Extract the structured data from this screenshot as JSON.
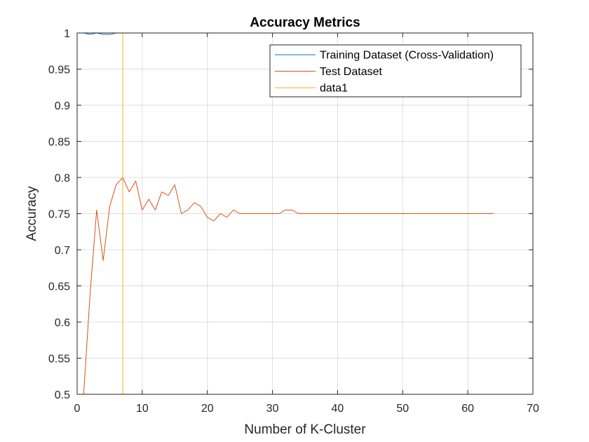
{
  "chart_data": {
    "type": "line",
    "title": "Accuracy Metrics",
    "xlabel": "Number of K-Cluster",
    "ylabel": "Accuracy",
    "xlim": [
      0,
      70
    ],
    "ylim": [
      0.5,
      1
    ],
    "xticks": [
      0,
      10,
      20,
      30,
      40,
      50,
      60,
      70
    ],
    "yticks": [
      0.5,
      0.55,
      0.6,
      0.65,
      0.7,
      0.75,
      0.8,
      0.85,
      0.9,
      0.95,
      1
    ],
    "ytick_labels": [
      "0.5",
      "0.55",
      "0.6",
      "0.65",
      "0.7",
      "0.75",
      "0.8",
      "0.85",
      "0.9",
      "0.95",
      "1"
    ],
    "grid": true,
    "legend_position": "top-right",
    "series": [
      {
        "name": "Training Dataset (Cross-Validation)",
        "color": "#0072BD",
        "x": [
          1,
          2,
          3,
          4,
          5,
          6,
          7,
          8,
          10,
          20,
          30,
          40,
          50,
          60,
          64
        ],
        "y": [
          1.0,
          0.998,
          1.0,
          0.998,
          0.998,
          1.0,
          1.0,
          1.0,
          1.0,
          1.0,
          1.0,
          1.0,
          1.0,
          1.0,
          1.0
        ]
      },
      {
        "name": "Test Dataset",
        "color": "#D95319",
        "x": [
          1,
          2,
          3,
          4,
          5,
          6,
          7,
          8,
          9,
          10,
          11,
          12,
          13,
          14,
          15,
          16,
          17,
          18,
          19,
          20,
          21,
          22,
          23,
          24,
          25,
          26,
          27,
          28,
          29,
          30,
          31,
          32,
          33,
          34,
          35,
          40,
          50,
          60,
          64
        ],
        "y": [
          0.5,
          0.64,
          0.755,
          0.685,
          0.76,
          0.79,
          0.8,
          0.78,
          0.795,
          0.755,
          0.77,
          0.755,
          0.78,
          0.775,
          0.79,
          0.75,
          0.755,
          0.765,
          0.76,
          0.745,
          0.74,
          0.75,
          0.745,
          0.755,
          0.75,
          0.75,
          0.75,
          0.75,
          0.75,
          0.75,
          0.75,
          0.755,
          0.755,
          0.75,
          0.75,
          0.75,
          0.75,
          0.75,
          0.75
        ]
      },
      {
        "name": "data1",
        "color": "#EDB120",
        "x": [
          7,
          7
        ],
        "y": [
          0.5,
          1.0
        ]
      }
    ]
  }
}
